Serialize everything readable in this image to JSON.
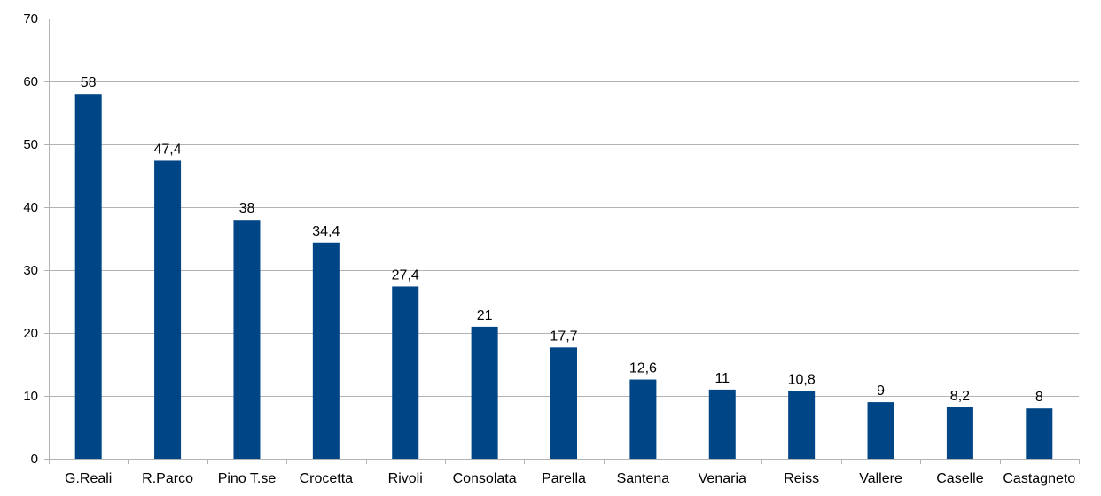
{
  "chart_data": {
    "type": "bar",
    "categories": [
      "G.Reali",
      "R.Parco",
      "Pino T.se",
      "Crocetta",
      "Rivoli",
      "Consolata",
      "Parella",
      "Santena",
      "Venaria",
      "Reiss",
      "Vallere",
      "Caselle",
      "Castagneto"
    ],
    "values": [
      58,
      47.4,
      38,
      34.4,
      27.4,
      21,
      17.7,
      12.6,
      11,
      10.8,
      9,
      8.2,
      8
    ],
    "value_labels": [
      "58",
      "47,4",
      "38",
      "34,4",
      "27,4",
      "21",
      "17,7",
      "12,6",
      "11",
      "10,8",
      "9",
      "8,2",
      "8"
    ],
    "title": "",
    "xlabel": "",
    "ylabel": "",
    "ylim": [
      0,
      70
    ],
    "yticks": [
      0,
      10,
      20,
      30,
      40,
      50,
      60,
      70
    ],
    "grid": true,
    "legend": "none",
    "colors": {
      "bar": "#004586",
      "grid": "#b3b3b3",
      "axis": "#b3b3b3"
    }
  }
}
